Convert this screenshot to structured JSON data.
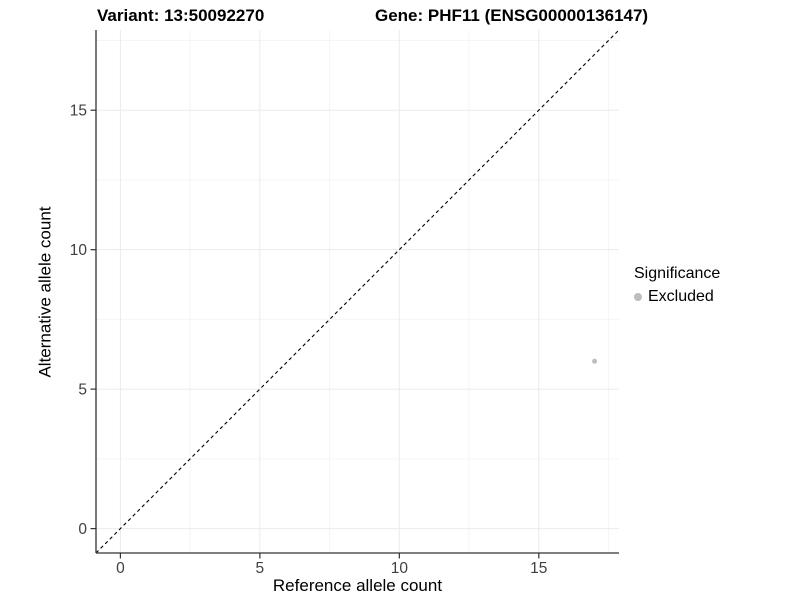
{
  "titles": {
    "variant": "Variant: 13:50092270",
    "gene": "Gene: PHF11 (ENSG00000136147)"
  },
  "legend": {
    "title": "Significance",
    "items": [
      {
        "label": "Excluded",
        "color": "#bdbdbd"
      }
    ]
  },
  "chart_data": {
    "type": "scatter",
    "title": "",
    "xlabel": "Reference allele count",
    "ylabel": "Alternative allele count",
    "xlim": [
      -0.875,
      17.875
    ],
    "ylim": [
      -0.875,
      17.875
    ],
    "x_major_ticks": [
      0,
      5,
      10,
      15
    ],
    "y_major_ticks": [
      0,
      5,
      10,
      15
    ],
    "x_minor_ticks": [
      2.5,
      7.5,
      12.5,
      17.5
    ],
    "y_minor_ticks": [
      2.5,
      7.5,
      12.5,
      17.5
    ],
    "grid": true,
    "legend_position": "right",
    "series": [
      {
        "name": "Excluded",
        "color": "#bdbdbd",
        "marker_radius": 2.5,
        "points": [
          {
            "x": 17,
            "y": 6
          }
        ]
      }
    ],
    "reference_line": {
      "kind": "identity y=x",
      "from": [
        -0.875,
        -0.875
      ],
      "to": [
        17.875,
        17.875
      ],
      "style": "dashed",
      "color": "#000000"
    },
    "colors": {
      "major_grid": "#ebebeb",
      "minor_grid": "#f5f5f5",
      "axis_line": "#333333",
      "tick_mark": "#333333",
      "tick_text": "#404040",
      "background": "#ffffff"
    }
  }
}
